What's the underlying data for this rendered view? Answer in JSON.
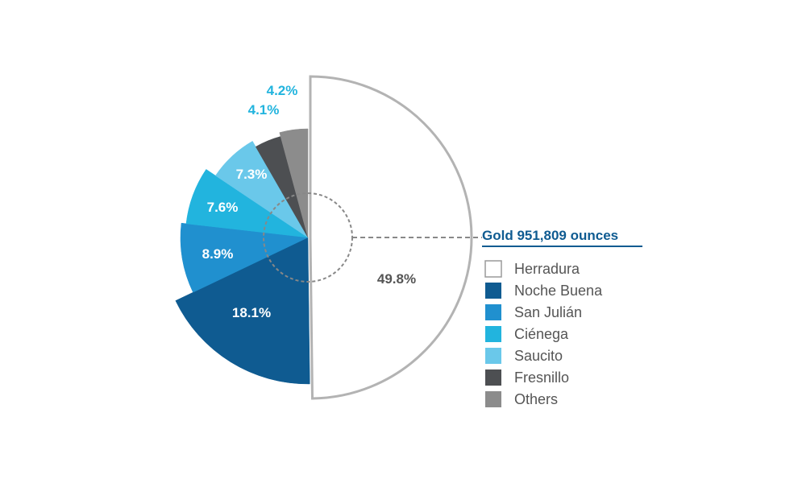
{
  "chart_data": {
    "type": "pie",
    "title": "Gold 951,809 ounces",
    "slices": [
      {
        "name": "Herradura",
        "value": 49.8,
        "label": "49.8%",
        "color": "#ffffff",
        "label_color": "#555555"
      },
      {
        "name": "Noche Buena",
        "value": 18.1,
        "label": "18.1%",
        "color": "#0f5b91",
        "label_color": "#ffffff"
      },
      {
        "name": "San Julián",
        "value": 8.9,
        "label": "8.9%",
        "color": "#2090cf",
        "label_color": "#ffffff"
      },
      {
        "name": "Ciénega",
        "value": 7.6,
        "label": "7.6%",
        "color": "#22b4de",
        "label_color": "#ffffff"
      },
      {
        "name": "Saucito",
        "value": 7.3,
        "label": "7.3%",
        "color": "#6ac8ea",
        "label_color": "#ffffff"
      },
      {
        "name": "Fresnillo",
        "value": 4.1,
        "label": "4.1%",
        "color": "#4d4f52",
        "label_color": "#22b4de"
      },
      {
        "name": "Others",
        "value": 4.2,
        "label": "4.2%",
        "color": "#8c8c8c",
        "label_color": "#22b4de"
      }
    ],
    "legend_placement": "right",
    "title_color": "#0f5b91",
    "outline_color": "#b3b3b3"
  }
}
